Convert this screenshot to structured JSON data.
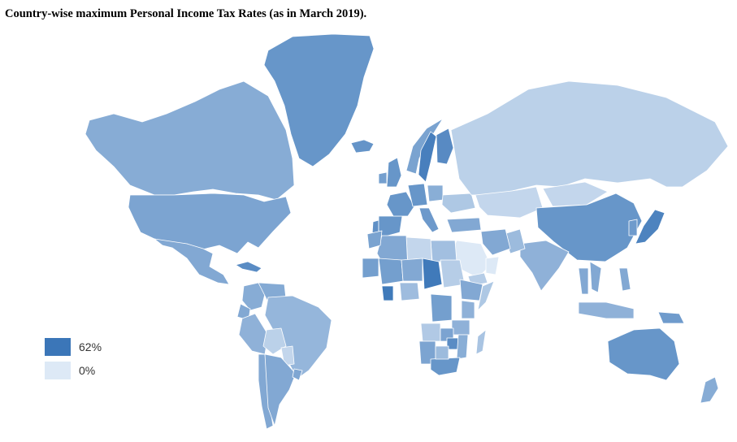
{
  "title": "Country-wise maximum Personal Income Tax Rates (as in March 2019).",
  "colors": {
    "max": "#3b76b8",
    "min": "#dde9f6",
    "border": "#ffffff",
    "background": "#ffffff"
  },
  "legend": {
    "max_label": "62%",
    "min_label": "0%",
    "max_value": 62,
    "min_value": 0,
    "placement": "bottom-left"
  },
  "chart_data": {
    "type": "heatmap",
    "subtype": "choropleth world map",
    "title": "Country-wise maximum Personal Income Tax Rates (as in March 2019).",
    "scale": {
      "min": 0,
      "max": 62,
      "min_label": "0%",
      "max_label": "62%"
    },
    "regions": [
      {
        "name": "Greenland",
        "value": 45
      },
      {
        "name": "Iceland",
        "value": 46
      },
      {
        "name": "Canada",
        "value": 33
      },
      {
        "name": "USA",
        "value": 37
      },
      {
        "name": "Mexico",
        "value": 35
      },
      {
        "name": "Cuba",
        "value": 50
      },
      {
        "name": "Colombia",
        "value": 33
      },
      {
        "name": "Venezuela",
        "value": 34
      },
      {
        "name": "Ecuador",
        "value": 35
      },
      {
        "name": "Peru",
        "value": 30
      },
      {
        "name": "Brazil",
        "value": 27.5
      },
      {
        "name": "Bolivia",
        "value": 13
      },
      {
        "name": "Paraguay",
        "value": 10
      },
      {
        "name": "Chile",
        "value": 35
      },
      {
        "name": "Argentina",
        "value": 35
      },
      {
        "name": "Uruguay",
        "value": 36
      },
      {
        "name": "Portugal",
        "value": 48
      },
      {
        "name": "Spain",
        "value": 45
      },
      {
        "name": "France",
        "value": 45
      },
      {
        "name": "UK",
        "value": 45
      },
      {
        "name": "Ireland",
        "value": 40
      },
      {
        "name": "Norway",
        "value": 38
      },
      {
        "name": "Sweden",
        "value": 57
      },
      {
        "name": "Finland",
        "value": 51
      },
      {
        "name": "Germany",
        "value": 45
      },
      {
        "name": "Italy",
        "value": 43
      },
      {
        "name": "Poland",
        "value": 32
      },
      {
        "name": "Ukraine",
        "value": 18
      },
      {
        "name": "Turkey",
        "value": 35
      },
      {
        "name": "Russia",
        "value": 13
      },
      {
        "name": "Kazakhstan",
        "value": 10
      },
      {
        "name": "Mongolia",
        "value": 10
      },
      {
        "name": "China",
        "value": 45
      },
      {
        "name": "Japan",
        "value": 55
      },
      {
        "name": "Korea",
        "value": 42
      },
      {
        "name": "India",
        "value": 30
      },
      {
        "name": "Pakistan",
        "value": 25
      },
      {
        "name": "Iran",
        "value": 35
      },
      {
        "name": "Saudi Arabia",
        "value": 0
      },
      {
        "name": "Yemen",
        "value": 15
      },
      {
        "name": "Oman",
        "value": 0
      },
      {
        "name": "Egypt",
        "value": 22.5
      },
      {
        "name": "Libya",
        "value": 10
      },
      {
        "name": "Algeria",
        "value": 35
      },
      {
        "name": "Morocco",
        "value": 38
      },
      {
        "name": "Mauritania",
        "value": 40
      },
      {
        "name": "Mali",
        "value": 40
      },
      {
        "name": "Niger",
        "value": 35
      },
      {
        "name": "Chad",
        "value": 60
      },
      {
        "name": "Sudan",
        "value": 15
      },
      {
        "name": "Ethiopia",
        "value": 35
      },
      {
        "name": "Somalia",
        "value": 18
      },
      {
        "name": "Nigeria",
        "value": 24
      },
      {
        "name": "Ivory Coast",
        "value": 60
      },
      {
        "name": "DR Congo",
        "value": 40
      },
      {
        "name": "Kenya",
        "value": 30
      },
      {
        "name": "Tanzania",
        "value": 30
      },
      {
        "name": "Angola",
        "value": 17
      },
      {
        "name": "Namibia",
        "value": 37
      },
      {
        "name": "Zambia",
        "value": 37.5
      },
      {
        "name": "Zimbabwe",
        "value": 50
      },
      {
        "name": "Mozambique",
        "value": 32
      },
      {
        "name": "South Africa",
        "value": 45
      },
      {
        "name": "Botswana",
        "value": 25
      },
      {
        "name": "Madagascar",
        "value": 20
      },
      {
        "name": "Thailand",
        "value": 35
      },
      {
        "name": "Vietnam",
        "value": 35
      },
      {
        "name": "Indonesia",
        "value": 30
      },
      {
        "name": "Philippines",
        "value": 35
      },
      {
        "name": "Papua New Guinea",
        "value": 42
      },
      {
        "name": "Australia",
        "value": 45
      },
      {
        "name": "New Zealand",
        "value": 33
      }
    ]
  }
}
